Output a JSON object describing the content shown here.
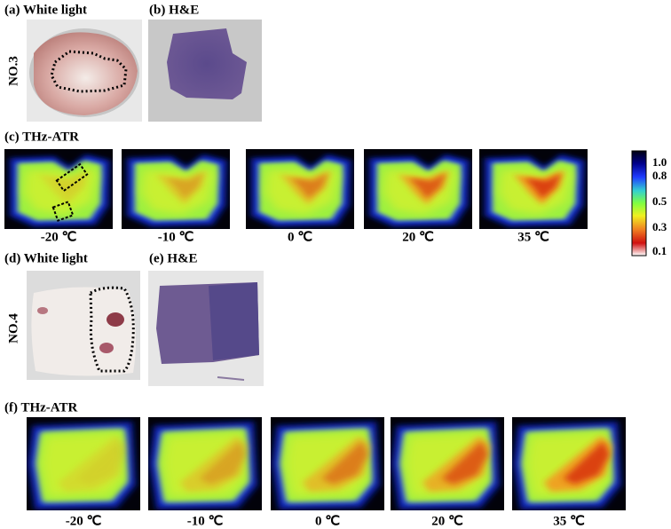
{
  "sample_3": {
    "id": "NO.3",
    "white_light_label": "(a) White light",
    "he_label": "(b) H&E",
    "thz_label": "(c) THz-ATR",
    "temperatures": [
      "-20 ℃",
      "-10 ℃",
      "0 ℃",
      "20 ℃",
      "35 ℃"
    ]
  },
  "sample_4": {
    "id": "NO.4",
    "white_light_label": "(d) White light",
    "he_label": "(e) H&E",
    "thz_label": "(f) THz-ATR",
    "temperatures": [
      "-20 ℃",
      "-10 ℃",
      "0 ℃",
      "20 ℃",
      "35 ℃"
    ]
  },
  "colorbar": {
    "ticks": [
      "1.0",
      "0.8",
      "0.5",
      "0.3",
      "0.1"
    ]
  }
}
